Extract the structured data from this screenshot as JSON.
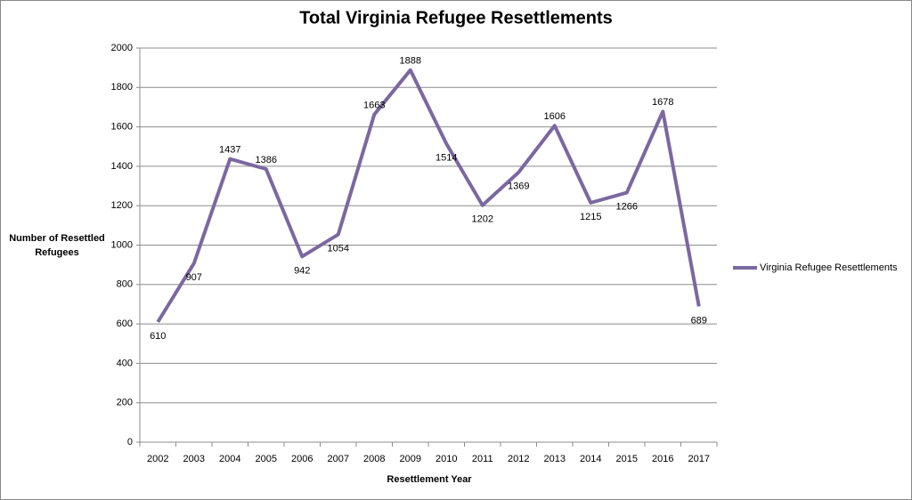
{
  "chart_data": {
    "type": "line",
    "title": "Total Virginia Refugee Resettlements",
    "x_label": "Resettlement Year",
    "y_label": "Number of Resettled Refugees",
    "categories": [
      "2002",
      "2003",
      "2004",
      "2005",
      "2006",
      "2007",
      "2008",
      "2009",
      "2010",
      "2011",
      "2012",
      "2013",
      "2014",
      "2015",
      "2016",
      "2017"
    ],
    "series": [
      {
        "name": "Virginia Refugee Resettlements",
        "color": "#7b68a0",
        "values": [
          610,
          907,
          1437,
          1386,
          942,
          1054,
          1663,
          1888,
          1514,
          1202,
          1369,
          1606,
          1215,
          1266,
          1678,
          689
        ]
      }
    ],
    "ylim": [
      0,
      2000
    ],
    "yticks": [
      0,
      200,
      400,
      600,
      800,
      1000,
      1200,
      1400,
      1600,
      1800,
      2000
    ],
    "grid": true,
    "data_labels": true,
    "legend": "right"
  }
}
